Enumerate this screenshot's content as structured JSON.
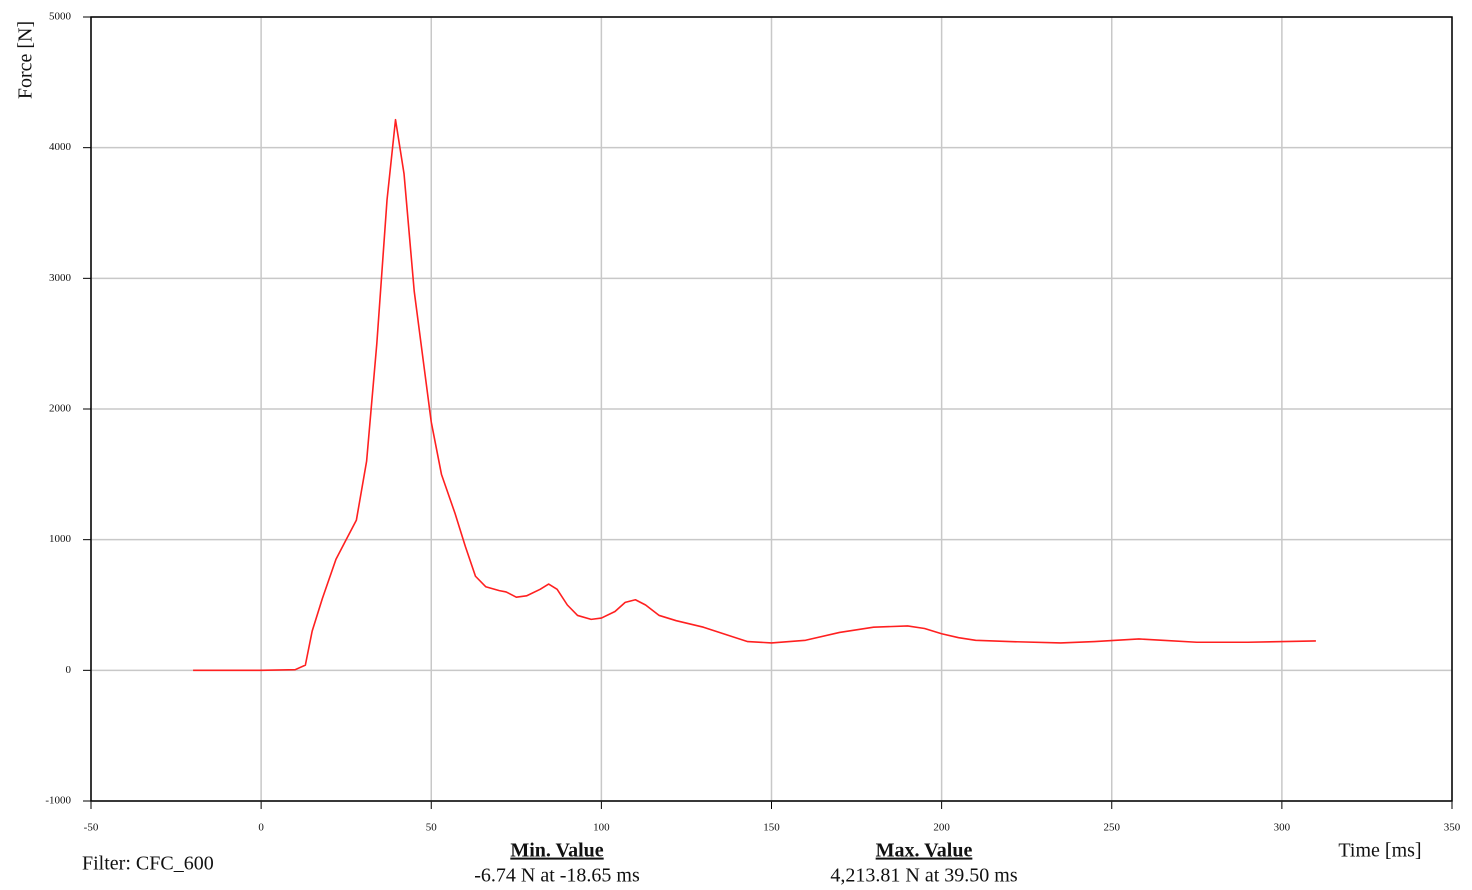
{
  "chart_data": {
    "type": "line",
    "xlabel": "Time [ms]",
    "ylabel": "Force [N]",
    "xlim": [
      -50,
      350
    ],
    "ylim": [
      -1000,
      5000
    ],
    "xticks": [
      -50,
      0,
      50,
      100,
      150,
      200,
      250,
      300,
      350
    ],
    "yticks": [
      -1000,
      0,
      1000,
      2000,
      3000,
      4000,
      5000
    ],
    "grid": true,
    "series": [
      {
        "color": "#ff2020",
        "x": [
          -20,
          0,
          10,
          13,
          15,
          18,
          22,
          25,
          28,
          31,
          34,
          37,
          39.5,
          42,
          45,
          48,
          50,
          53,
          57,
          60,
          63,
          66,
          70,
          72,
          75,
          78,
          82,
          84.5,
          87,
          90,
          93,
          97,
          100,
          104,
          107,
          110,
          113,
          117,
          122,
          130,
          137,
          143,
          150,
          160,
          170,
          180,
          190,
          195,
          200,
          205,
          210,
          220,
          235,
          245,
          258,
          265,
          275,
          290,
          310
        ],
        "values": [
          0,
          0,
          5,
          40,
          300,
          550,
          850,
          1000,
          1150,
          1600,
          2500,
          3600,
          4214,
          3800,
          2900,
          2300,
          1900,
          1500,
          1200,
          950,
          720,
          640,
          610,
          600,
          560,
          570,
          620,
          660,
          620,
          500,
          420,
          390,
          400,
          450,
          520,
          540,
          500,
          420,
          380,
          330,
          270,
          220,
          210,
          230,
          290,
          330,
          340,
          320,
          280,
          250,
          230,
          220,
          210,
          220,
          240,
          230,
          215,
          215,
          225
        ]
      }
    ],
    "filter": "Filter: CFC_600",
    "min_title": "Min. Value",
    "min_text": "-6.74 N at -18.65 ms",
    "max_title": "Max. Value",
    "max_text": "4,213.81 N at 39.50 ms"
  }
}
